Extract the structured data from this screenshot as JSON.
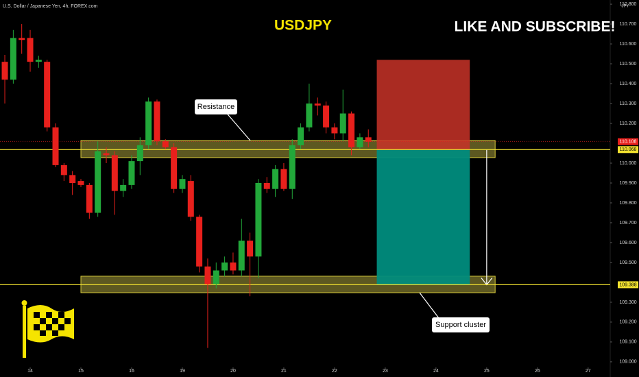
{
  "chart_data": {
    "type": "candlestick",
    "title": "USDJPY",
    "subtitle": "U.S. Dollar / Japanese Yen, 4h, FOREX.com",
    "currency": "JPY",
    "annotations": [
      "LIKE AND SUBSCRIBE!",
      "Resistance",
      "Support cluster"
    ],
    "x": [
      0,
      1,
      2,
      3,
      4,
      5,
      6,
      7,
      8,
      9,
      10,
      11,
      12,
      13,
      14,
      15,
      16,
      17,
      18,
      19,
      20,
      21,
      22,
      23,
      24,
      25,
      26,
      27,
      28,
      29,
      30,
      31,
      32,
      33,
      34,
      35,
      36,
      37,
      38,
      39,
      40,
      41,
      42,
      43
    ],
    "open": [
      110.51,
      110.42,
      110.63,
      110.63,
      110.51,
      110.51,
      110.18,
      109.99,
      109.94,
      109.91,
      109.89,
      109.75,
      110.05,
      110.04,
      109.86,
      109.89,
      110.01,
      110.09,
      110.31,
      110.11,
      110.08,
      109.87,
      109.91,
      109.73,
      109.48,
      109.39,
      109.46,
      109.5,
      109.46,
      109.61,
      109.53,
      109.9,
      109.87,
      109.97,
      109.87,
      110.09,
      110.18,
      110.3,
      110.29,
      110.18,
      110.15,
      110.25,
      110.08,
      110.13
    ],
    "high": [
      110.545,
      110.67,
      110.7,
      110.67,
      110.54,
      110.52,
      110.2,
      110.0,
      109.96,
      109.92,
      109.9,
      110.11,
      110.08,
      110.06,
      109.92,
      110.04,
      110.13,
      110.33,
      110.32,
      110.12,
      110.1,
      109.94,
      109.94,
      109.74,
      109.52,
      109.5,
      109.53,
      109.55,
      109.72,
      109.65,
      109.92,
      109.93,
      109.99,
      110.0,
      110.12,
      110.2,
      110.4,
      110.33,
      110.31,
      110.2,
      110.37,
      110.26,
      110.15,
      110.17
    ],
    "low": [
      110.3,
      110.4,
      110.55,
      110.46,
      110.48,
      110.16,
      109.98,
      109.91,
      109.84,
      109.88,
      109.72,
      109.73,
      110.0,
      109.74,
      109.83,
      109.87,
      109.94,
      110.07,
      110.09,
      110.07,
      109.85,
      109.85,
      109.71,
      109.45,
      109.07,
      109.37,
      109.43,
      109.44,
      109.43,
      109.33,
      109.42,
      109.85,
      109.83,
      109.86,
      109.82,
      110.07,
      110.16,
      110.24,
      110.15,
      110.12,
      110.11,
      110.04,
      110.07,
      110.08
    ],
    "close": [
      110.42,
      110.63,
      110.62,
      110.51,
      110.52,
      110.18,
      109.99,
      109.94,
      109.9,
      109.89,
      109.75,
      110.06,
      110.04,
      109.86,
      109.89,
      110.01,
      110.09,
      110.31,
      110.11,
      110.08,
      109.87,
      109.92,
      109.73,
      109.48,
      109.39,
      109.46,
      109.5,
      109.46,
      109.61,
      109.53,
      109.9,
      109.87,
      109.97,
      109.87,
      110.09,
      110.18,
      110.3,
      110.29,
      110.18,
      110.15,
      110.25,
      110.08,
      110.13,
      110.108
    ],
    "up_color": "#22a83a",
    "down_color": "#e8201c",
    "xlim": [
      -0.57,
      71.61
    ],
    "xticks": [
      {
        "value": 3,
        "label": "14"
      },
      {
        "value": 9,
        "label": "15"
      },
      {
        "value": 15,
        "label": "16"
      },
      {
        "value": 21,
        "label": "19"
      },
      {
        "value": 27,
        "label": "20"
      },
      {
        "value": 33,
        "label": "21"
      },
      {
        "value": 39,
        "label": "22"
      },
      {
        "value": 45,
        "label": "23"
      },
      {
        "value": 51,
        "label": "24"
      },
      {
        "value": 57,
        "label": "25"
      },
      {
        "value": 63,
        "label": "26"
      },
      {
        "value": 69,
        "label": "27"
      }
    ],
    "ylim": [
      108.972,
      110.821
    ],
    "yticks": [
      {
        "value": 110.8,
        "label": "110.800"
      },
      {
        "value": 110.7,
        "label": "110.700"
      },
      {
        "value": 110.6,
        "label": "110.600"
      },
      {
        "value": 110.5,
        "label": "110.500"
      },
      {
        "value": 110.4,
        "label": "110.400"
      },
      {
        "value": 110.3,
        "label": "110.300"
      },
      {
        "value": 110.2,
        "label": "110.200"
      },
      {
        "value": 110.0,
        "label": "110.000"
      },
      {
        "value": 109.9,
        "label": "109.900"
      },
      {
        "value": 109.8,
        "label": "109.800"
      },
      {
        "value": 109.7,
        "label": "109.700"
      },
      {
        "value": 109.6,
        "label": "109.600"
      },
      {
        "value": 109.5,
        "label": "109.500"
      },
      {
        "value": 109.3,
        "label": "109.300"
      },
      {
        "value": 109.2,
        "label": "109.200"
      },
      {
        "value": 109.1,
        "label": "109.100"
      },
      {
        "value": 109.0,
        "label": "109.000"
      }
    ],
    "price_lines": [
      110.068,
      109.388
    ],
    "price_line_color": "#f2e230",
    "zones": [
      {
        "x": [
          9,
          58
        ],
        "y": [
          110.028,
          110.114
        ]
      },
      {
        "x": [
          9,
          58
        ],
        "y": [
          109.348,
          109.431
        ]
      }
    ],
    "position": {
      "x": [
        44,
        55
      ],
      "stop": 110.52,
      "entry": 110.068,
      "target": 109.388,
      "arrow_x": 57
    }
  }
}
